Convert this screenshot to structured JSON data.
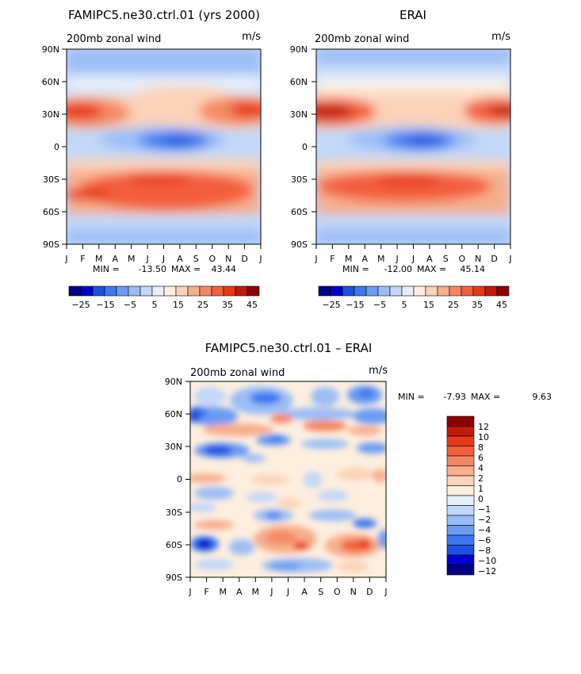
{
  "chart_data": [
    {
      "type": "heatmap",
      "title": "FAMIPC5.ne30.ctrl.01 (yrs 2000)",
      "subtitle": "200mb zonal wind",
      "units": "m/s",
      "x_ticks": [
        "J",
        "F",
        "M",
        "A",
        "M",
        "J",
        "J",
        "A",
        "S",
        "O",
        "N",
        "D",
        "J"
      ],
      "y_ticks": [
        "90N",
        "60N",
        "30N",
        "0",
        "30S",
        "60S",
        "90S"
      ],
      "min_label": "MIN =",
      "min_value": "-13.50",
      "max_label": "MAX =",
      "max_value": "43.44",
      "colorbar_labels": [
        "−25",
        "−15",
        "−5",
        "5",
        "15",
        "25",
        "35",
        "45"
      ],
      "colors": [
        "#000080",
        "#0000cd",
        "#1d4fe0",
        "#3c78f0",
        "#6b9cf2",
        "#9bbdf5",
        "#c3d7f8",
        "#e6eefb",
        "#fdeede",
        "#fbd3b9",
        "#f7ae8c",
        "#f58864",
        "#f35f3c",
        "#e93818",
        "#c01a0a",
        "#8b0000"
      ]
    },
    {
      "type": "heatmap",
      "title": "ERAI",
      "subtitle": "200mb zonal wind",
      "units": "m/s",
      "x_ticks": [
        "J",
        "F",
        "M",
        "A",
        "M",
        "J",
        "J",
        "A",
        "S",
        "O",
        "N",
        "D",
        "J"
      ],
      "y_ticks": [
        "90N",
        "60N",
        "30N",
        "0",
        "30S",
        "60S",
        "90S"
      ],
      "min_label": "MIN =",
      "min_value": "-12.00",
      "max_label": "MAX =",
      "max_value": "45.14",
      "colorbar_labels": [
        "−25",
        "−15",
        "−5",
        "5",
        "15",
        "25",
        "35",
        "45"
      ]
    },
    {
      "type": "heatmap",
      "title": "FAMIPC5.ne30.ctrl.01 – ERAI",
      "subtitle": "200mb zonal wind",
      "units": "m/s",
      "x_ticks": [
        "J",
        "F",
        "M",
        "A",
        "M",
        "J",
        "J",
        "A",
        "S",
        "O",
        "N",
        "D",
        "J"
      ],
      "y_ticks": [
        "90N",
        "60N",
        "30N",
        "0",
        "30S",
        "60S",
        "90S"
      ],
      "min_label": "MIN =",
      "min_value": "-7.93",
      "max_label": "MAX =",
      "max_value": "9.63",
      "colorbar_labels": [
        "12",
        "10",
        "8",
        "6",
        "4",
        "2",
        "1",
        "0",
        "−1",
        "−2",
        "−4",
        "−6",
        "−8",
        "−10",
        "−12"
      ],
      "colors": [
        "#8b0000",
        "#c01a0a",
        "#e93818",
        "#f35f3c",
        "#f58864",
        "#f7ae8c",
        "#fbd3b9",
        "#fdeede",
        "#e6eefb",
        "#c3d7f8",
        "#9bbdf5",
        "#6b9cf2",
        "#3c78f0",
        "#1d4fe0",
        "#0000cd",
        "#000080"
      ]
    }
  ]
}
